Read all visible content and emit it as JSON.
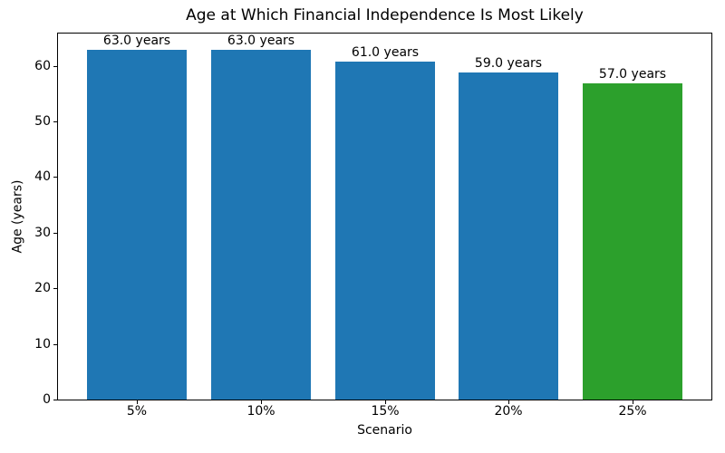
{
  "chart_data": {
    "type": "bar",
    "title": "Age at Which Financial Independence Is Most Likely",
    "xlabel": "Scenario",
    "ylabel": "Age (years)",
    "categories": [
      "5%",
      "10%",
      "15%",
      "20%",
      "25%"
    ],
    "values": [
      63.0,
      63.0,
      61.0,
      59.0,
      57.0
    ],
    "bar_labels": [
      "63.0 years",
      "63.0 years",
      "61.0 years",
      "59.0 years",
      "57.0 years"
    ],
    "bar_colors": [
      "#1f77b4",
      "#1f77b4",
      "#1f77b4",
      "#1f77b4",
      "#2ca02c"
    ],
    "yticks": [
      0,
      10,
      20,
      30,
      40,
      50,
      60
    ],
    "ylim": [
      0,
      66.15
    ],
    "xlim": [
      -0.64,
      4.64
    ],
    "bar_width": 0.8,
    "grid": false,
    "legend_position": "none",
    "frame_color": "#000000",
    "text_color": "#000000",
    "background_color": "#ffffff"
  }
}
